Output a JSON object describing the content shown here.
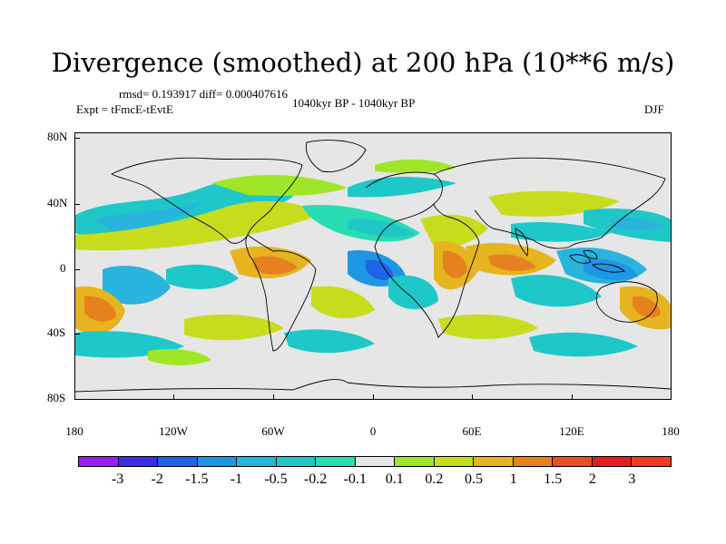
{
  "title": "Divergence (smoothed) at 200 hPa (10**6 m/s)",
  "stats_line": "rmsd= 0.193917 diff= 0.000407616",
  "experiment": "Expt = tFmcE-tEvtE",
  "period": "1040kyr BP - 1040kyr BP",
  "season": "DJF",
  "axes": {
    "y_labels": [
      "80N",
      "40N",
      "0",
      "40S",
      "80S"
    ],
    "x_labels": [
      "180",
      "120W",
      "60W",
      "0",
      "60E",
      "120E",
      "180"
    ]
  },
  "colorbar": {
    "labels": [
      "-3",
      "-2",
      "-1.5",
      "-1",
      "-0.5",
      "-0.2",
      "-0.1",
      "0.1",
      "0.2",
      "0.5",
      "1",
      "1.5",
      "2",
      "3"
    ],
    "colors": [
      "#9a1df0",
      "#3c2de6",
      "#1e64e6",
      "#1e96e6",
      "#28b4dc",
      "#1ec8c8",
      "#28dcb4",
      "#e6e6e6",
      "#a0e628",
      "#c8dc1e",
      "#e6b41e",
      "#e6821e",
      "#e6501e",
      "#e61e1e",
      "#f03c1e"
    ]
  },
  "map": {
    "background_color": "#e6e6e6",
    "coastline_color": "#000000"
  }
}
